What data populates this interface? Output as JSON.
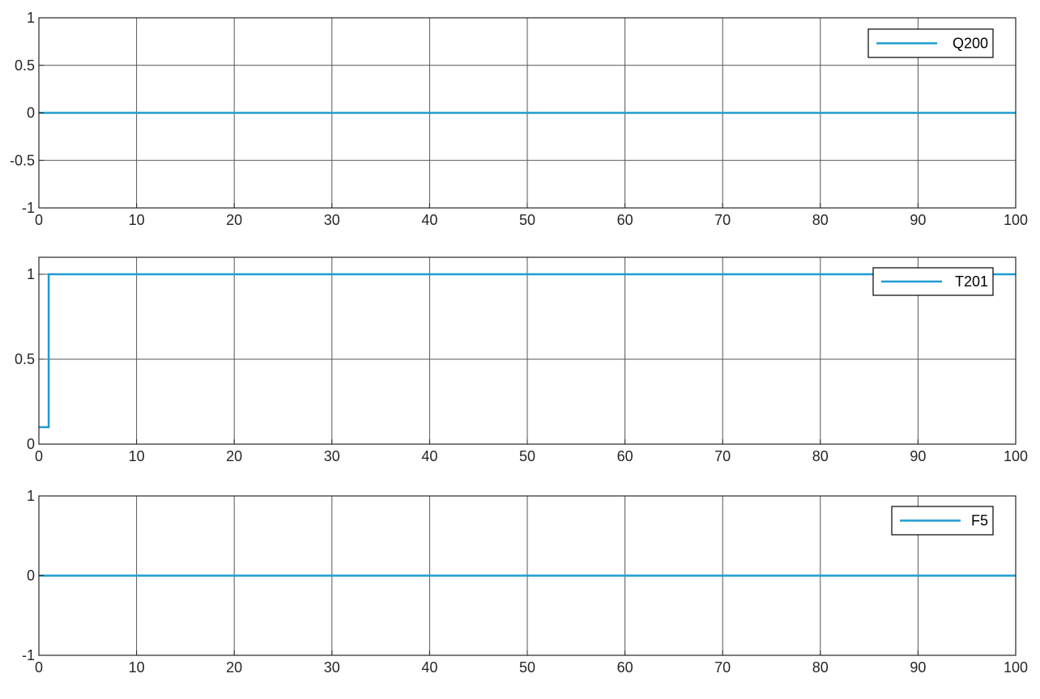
{
  "figure": {
    "background": "#ffffff"
  },
  "style": {
    "line_color": "#1f9bd1",
    "axis_color": "#262626",
    "grid_color": "#555555",
    "legend_border": "#000000"
  },
  "chart_data": [
    {
      "type": "line",
      "title": "",
      "xlabel": "",
      "ylabel": "",
      "xlim": [
        0,
        100
      ],
      "ylim": [
        -1,
        1
      ],
      "xticks": [
        0,
        10,
        20,
        30,
        40,
        50,
        60,
        70,
        80,
        90,
        100
      ],
      "yticks": [
        1,
        0.5,
        0,
        -0.5,
        -1
      ],
      "xtick_labels": [
        "0",
        "10",
        "20",
        "30",
        "40",
        "50",
        "60",
        "70",
        "80",
        "90",
        "100"
      ],
      "ytick_labels": [
        "1",
        "0.5",
        "0",
        "-0.5",
        "-1"
      ],
      "grid": true,
      "legend": "top-right",
      "series": [
        {
          "name": "Q200",
          "x": [
            0,
            100
          ],
          "y": [
            0,
            0
          ]
        }
      ]
    },
    {
      "type": "line",
      "title": "",
      "xlabel": "",
      "ylabel": "",
      "xlim": [
        0,
        100
      ],
      "ylim": [
        0,
        1.1
      ],
      "xticks": [
        0,
        10,
        20,
        30,
        40,
        50,
        60,
        70,
        80,
        90,
        100
      ],
      "yticks": [
        1,
        0.5,
        0
      ],
      "xtick_labels": [
        "0",
        "10",
        "20",
        "30",
        "40",
        "50",
        "60",
        "70",
        "80",
        "90",
        "100"
      ],
      "ytick_labels": [
        "1",
        "0.5",
        "0"
      ],
      "grid": true,
      "legend": "top-right",
      "series": [
        {
          "name": "T201",
          "x": [
            0,
            1,
            1,
            100
          ],
          "y": [
            0.1,
            0.1,
            1,
            1
          ]
        }
      ]
    },
    {
      "type": "line",
      "title": "",
      "xlabel": "",
      "ylabel": "",
      "xlim": [
        0,
        100
      ],
      "ylim": [
        -1,
        1
      ],
      "xticks": [
        0,
        10,
        20,
        30,
        40,
        50,
        60,
        70,
        80,
        90,
        100
      ],
      "yticks": [
        1,
        0,
        -1
      ],
      "xtick_labels": [
        "0",
        "10",
        "20",
        "30",
        "40",
        "50",
        "60",
        "70",
        "80",
        "90",
        "100"
      ],
      "ytick_labels": [
        "1",
        "0",
        "-1"
      ],
      "grid": true,
      "legend": "top-right",
      "series": [
        {
          "name": "F5",
          "x": [
            0,
            100
          ],
          "y": [
            0,
            0
          ]
        }
      ]
    }
  ]
}
